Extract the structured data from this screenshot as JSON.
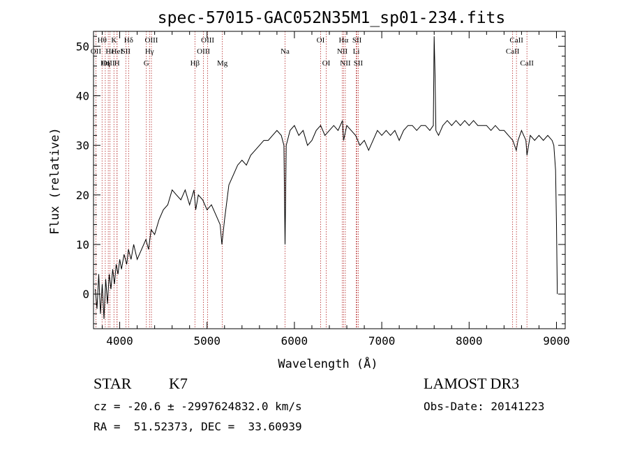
{
  "chart_data": {
    "type": "line",
    "title": "spec-57015-GAC052N35M1_sp01-234.fits",
    "xlabel": "Wavelength (Å)",
    "ylabel": "Flux (relative)",
    "xlim": [
      3700,
      9100
    ],
    "ylim": [
      -7,
      53
    ],
    "x_ticks": [
      4000,
      5000,
      6000,
      7000,
      8000,
      9000
    ],
    "y_ticks": [
      0,
      10,
      20,
      30,
      40,
      50
    ],
    "grid": false,
    "line_color": "#000000",
    "marker_color": "#b22222",
    "spectrum": [
      [
        3720,
        1
      ],
      [
        3740,
        -3
      ],
      [
        3760,
        4
      ],
      [
        3780,
        -4
      ],
      [
        3800,
        2
      ],
      [
        3820,
        -5
      ],
      [
        3840,
        3
      ],
      [
        3860,
        -2
      ],
      [
        3880,
        4
      ],
      [
        3900,
        1
      ],
      [
        3920,
        5
      ],
      [
        3940,
        2
      ],
      [
        3960,
        6
      ],
      [
        3980,
        4
      ],
      [
        4000,
        7
      ],
      [
        4020,
        5
      ],
      [
        4050,
        8
      ],
      [
        4080,
        6
      ],
      [
        4100,
        9
      ],
      [
        4130,
        7
      ],
      [
        4160,
        10
      ],
      [
        4200,
        7
      ],
      [
        4250,
        9
      ],
      [
        4300,
        11
      ],
      [
        4330,
        9
      ],
      [
        4360,
        13
      ],
      [
        4400,
        12
      ],
      [
        4450,
        15
      ],
      [
        4500,
        17
      ],
      [
        4550,
        18
      ],
      [
        4600,
        21
      ],
      [
        4650,
        20
      ],
      [
        4700,
        19
      ],
      [
        4750,
        21
      ],
      [
        4800,
        18
      ],
      [
        4850,
        21
      ],
      [
        4870,
        17
      ],
      [
        4900,
        20
      ],
      [
        4950,
        19
      ],
      [
        5000,
        17
      ],
      [
        5050,
        18
      ],
      [
        5100,
        16
      ],
      [
        5150,
        14
      ],
      [
        5170,
        10
      ],
      [
        5200,
        15
      ],
      [
        5250,
        22
      ],
      [
        5300,
        24
      ],
      [
        5350,
        26
      ],
      [
        5400,
        27
      ],
      [
        5450,
        26
      ],
      [
        5500,
        28
      ],
      [
        5550,
        29
      ],
      [
        5600,
        30
      ],
      [
        5650,
        31
      ],
      [
        5700,
        31
      ],
      [
        5750,
        32
      ],
      [
        5800,
        33
      ],
      [
        5850,
        32
      ],
      [
        5880,
        30
      ],
      [
        5893,
        10
      ],
      [
        5906,
        30
      ],
      [
        5950,
        33
      ],
      [
        6000,
        34
      ],
      [
        6050,
        32
      ],
      [
        6100,
        33
      ],
      [
        6150,
        30
      ],
      [
        6200,
        31
      ],
      [
        6250,
        33
      ],
      [
        6300,
        34
      ],
      [
        6350,
        32
      ],
      [
        6400,
        33
      ],
      [
        6450,
        34
      ],
      [
        6500,
        33
      ],
      [
        6550,
        35
      ],
      [
        6563,
        31
      ],
      [
        6600,
        34
      ],
      [
        6650,
        33
      ],
      [
        6700,
        32
      ],
      [
        6750,
        30
      ],
      [
        6800,
        31
      ],
      [
        6850,
        29
      ],
      [
        6900,
        31
      ],
      [
        6950,
        33
      ],
      [
        7000,
        32
      ],
      [
        7050,
        33
      ],
      [
        7100,
        32
      ],
      [
        7150,
        33
      ],
      [
        7200,
        31
      ],
      [
        7250,
        33
      ],
      [
        7300,
        34
      ],
      [
        7350,
        34
      ],
      [
        7400,
        33
      ],
      [
        7450,
        34
      ],
      [
        7500,
        34
      ],
      [
        7550,
        33
      ],
      [
        7590,
        34
      ],
      [
        7600,
        52
      ],
      [
        7610,
        44
      ],
      [
        7620,
        33
      ],
      [
        7650,
        32
      ],
      [
        7700,
        34
      ],
      [
        7750,
        35
      ],
      [
        7800,
        34
      ],
      [
        7850,
        35
      ],
      [
        7900,
        34
      ],
      [
        7950,
        35
      ],
      [
        8000,
        34
      ],
      [
        8050,
        35
      ],
      [
        8100,
        34
      ],
      [
        8150,
        34
      ],
      [
        8200,
        34
      ],
      [
        8250,
        33
      ],
      [
        8300,
        34
      ],
      [
        8350,
        33
      ],
      [
        8400,
        33
      ],
      [
        8450,
        32
      ],
      [
        8500,
        31
      ],
      [
        8540,
        29
      ],
      [
        8560,
        31
      ],
      [
        8600,
        33
      ],
      [
        8650,
        31
      ],
      [
        8662,
        28
      ],
      [
        8700,
        32
      ],
      [
        8750,
        31
      ],
      [
        8800,
        32
      ],
      [
        8850,
        31
      ],
      [
        8900,
        32
      ],
      [
        8950,
        31
      ],
      [
        8970,
        30
      ],
      [
        8990,
        25
      ],
      [
        9000,
        14
      ],
      [
        9010,
        0
      ]
    ],
    "lines": [
      {
        "label": "Hθ",
        "x": 3798,
        "row": 0
      },
      {
        "label": "OII",
        "x": 3727,
        "row": 1
      },
      {
        "label": "OIII",
        "x": 3869,
        "row": 2
      },
      {
        "label": "K",
        "x": 3934,
        "row": 0
      },
      {
        "label": "Hε",
        "x": 3889,
        "row": 1
      },
      {
        "label": "Hη",
        "x": 3835,
        "row": 2
      },
      {
        "label": "Hδ",
        "x": 4102,
        "row": 0
      },
      {
        "label": "HeI",
        "x": 3970,
        "row": 1
      },
      {
        "label": "H",
        "x": 3969,
        "row": 2
      },
      {
        "label": "OIII",
        "x": 4363,
        "row": 0
      },
      {
        "label": "SII",
        "x": 4070,
        "row": 1
      },
      {
        "label": "G",
        "x": 4305,
        "row": 2
      },
      {
        "label": "OIII",
        "x": 5007,
        "row": 0
      },
      {
        "label": "Hγ",
        "x": 4341,
        "row": 1
      },
      {
        "label": "Hβ",
        "x": 4861,
        "row": 2
      },
      {
        "label": "OI",
        "x": 6300,
        "row": 0
      },
      {
        "label": "OIII",
        "x": 4959,
        "row": 1
      },
      {
        "label": "Mg",
        "x": 5175,
        "row": 2
      },
      {
        "label": "Hα",
        "x": 6563,
        "row": 0
      },
      {
        "label": "Na",
        "x": 5893,
        "row": 1
      },
      {
        "label": "OI",
        "x": 6364,
        "row": 2
      },
      {
        "label": "SII",
        "x": 6716,
        "row": 0
      },
      {
        "label": "NII",
        "x": 6548,
        "row": 1
      },
      {
        "label": "NII",
        "x": 6583,
        "row": 2
      },
      {
        "label": "CaII",
        "x": 8542,
        "row": 0
      },
      {
        "label": "Li",
        "x": 6708,
        "row": 1
      },
      {
        "label": "SII",
        "x": 6731,
        "row": 2
      },
      {
        "label": "CaII",
        "x": 8498,
        "row": 1
      },
      {
        "label": "CaII",
        "x": 8662,
        "row": 2
      }
    ]
  },
  "info": {
    "class": "STAR",
    "subclass": "K7",
    "survey": "LAMOST DR3",
    "cz": "cz = -20.6 ± -2997624832.0 km/s",
    "obs_date": "Obs-Date: 20141223",
    "coords": "RA =  51.52373, DEC =  33.60939"
  }
}
